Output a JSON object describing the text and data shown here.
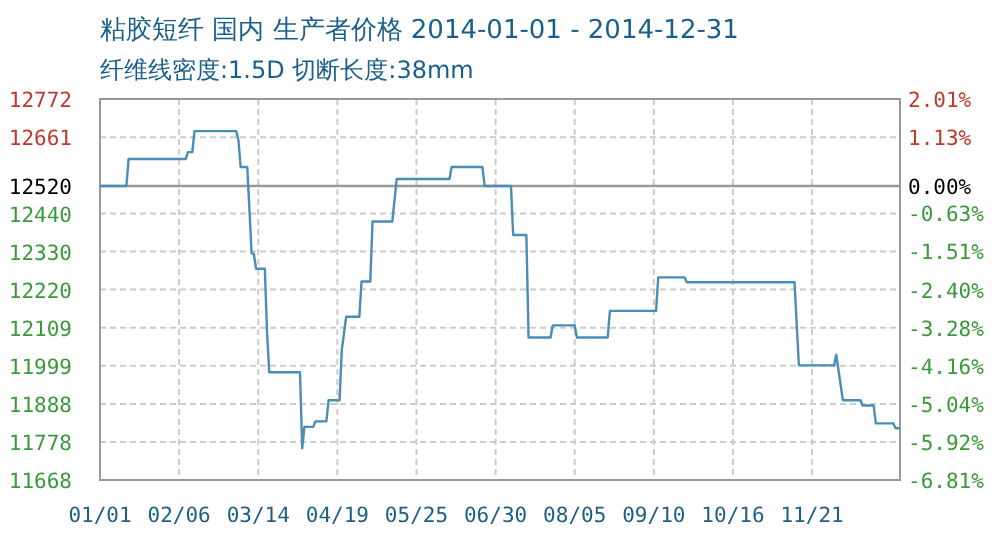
{
  "chart_data": {
    "type": "line",
    "title": "粘胶短纤 国内 生产者价格 2014-01-01 - 2014-12-31",
    "subtitle": "纤维线密度:1.5D 切断长度:38mm",
    "x": [
      "2014-01-01",
      "2014-01-13",
      "2014-01-14",
      "2014-02-09",
      "2014-02-10",
      "2014-02-12",
      "2014-02-13",
      "2014-03-04",
      "2014-03-05",
      "2014-03-06",
      "2014-03-09",
      "2014-03-10",
      "2014-03-11",
      "2014-03-12",
      "2014-03-13",
      "2014-03-17",
      "2014-03-18",
      "2014-03-19",
      "2014-04-02",
      "2014-04-03",
      "2014-04-04",
      "2014-04-08",
      "2014-04-09",
      "2014-04-14",
      "2014-04-15",
      "2014-04-20",
      "2014-04-21",
      "2014-04-23",
      "2014-04-29",
      "2014-04-30",
      "2014-05-04",
      "2014-05-05",
      "2014-05-14",
      "2014-05-16",
      "2014-06-09",
      "2014-06-10",
      "2014-06-24",
      "2014-06-25",
      "2014-07-07",
      "2014-07-08",
      "2014-07-14",
      "2014-07-15",
      "2014-07-25",
      "2014-07-26",
      "2014-08-05",
      "2014-08-06",
      "2014-08-20",
      "2014-08-21",
      "2014-09-11",
      "2014-09-12",
      "2014-09-24",
      "2014-09-25",
      "2014-11-13",
      "2014-11-15",
      "2014-12-01",
      "2014-12-02",
      "2014-12-05",
      "2014-12-13",
      "2014-12-14",
      "2014-12-19",
      "2014-12-20",
      "2014-12-28",
      "2014-12-29",
      "2014-12-31"
    ],
    "values": [
      12520,
      12520,
      12598,
      12598,
      12618,
      12618,
      12679,
      12679,
      12652,
      12575,
      12575,
      12450,
      12324,
      12324,
      12280,
      12280,
      12096,
      11980,
      11980,
      11760,
      11822,
      11822,
      11838,
      11838,
      11899,
      11899,
      12044,
      12141,
      12141,
      12243,
      12243,
      12417,
      12417,
      12540,
      12540,
      12575,
      12575,
      12520,
      12520,
      12378,
      12378,
      12081,
      12081,
      12116,
      12116,
      12081,
      12081,
      12158,
      12158,
      12255,
      12255,
      12241,
      12241,
      12000,
      12000,
      12031,
      11899,
      11899,
      11884,
      11884,
      11832,
      11832,
      11818,
      11818
    ],
    "color": "#4a8db5",
    "xlim": [
      "2014-01-01",
      "2014-12-31"
    ],
    "xticks": [
      {
        "value": "2014-01-01",
        "label": "01/01"
      },
      {
        "value": "2014-02-06",
        "label": "02/06"
      },
      {
        "value": "2014-03-14",
        "label": "03/14"
      },
      {
        "value": "2014-04-19",
        "label": "04/19"
      },
      {
        "value": "2014-05-25",
        "label": "05/25"
      },
      {
        "value": "2014-06-30",
        "label": "06/30"
      },
      {
        "value": "2014-08-05",
        "label": "08/05"
      },
      {
        "value": "2014-09-10",
        "label": "09/10"
      },
      {
        "value": "2014-10-16",
        "label": "10/16"
      },
      {
        "value": "2014-11-21",
        "label": "11/21"
      }
    ],
    "ylim": [
      11668,
      12772
    ],
    "yticks": [
      11668,
      11778,
      11888,
      11999,
      12109,
      12220,
      12330,
      12440,
      12520,
      12661,
      12772
    ],
    "y2lim": [
      -6.81,
      2.01
    ],
    "y2ticks": [
      {
        "value": -6.81,
        "label": "-6.81%"
      },
      {
        "value": -5.92,
        "label": "-5.92%"
      },
      {
        "value": -5.04,
        "label": "-5.04%"
      },
      {
        "value": -4.16,
        "label": "-4.16%"
      },
      {
        "value": -3.28,
        "label": "-3.28%"
      },
      {
        "value": -2.4,
        "label": "-2.40%"
      },
      {
        "value": -1.51,
        "label": "-1.51%"
      },
      {
        "value": -0.63,
        "label": "-0.63%"
      },
      {
        "value": 0,
        "label": "0.00%"
      },
      {
        "value": 1.13,
        "label": "1.13%"
      },
      {
        "value": 2.01,
        "label": "2.01%"
      }
    ],
    "ref_lines": [
      {
        "axis": "y",
        "value": 12520,
        "color": "#999999"
      }
    ],
    "grid": true
  }
}
